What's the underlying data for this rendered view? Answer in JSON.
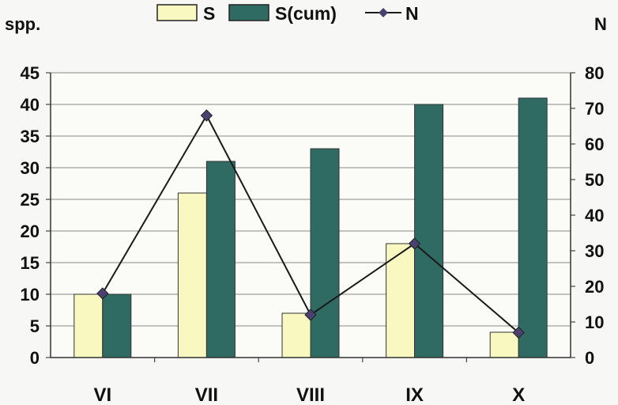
{
  "chart_data": {
    "type": "bar",
    "categories": [
      "VI",
      "VII",
      "VIII",
      "IX",
      "X"
    ],
    "series": [
      {
        "name": "S",
        "type": "bar",
        "axis": "left",
        "color": "#f8f8c0",
        "values": [
          10,
          26,
          7,
          18,
          4
        ]
      },
      {
        "name": "S(cum)",
        "type": "bar",
        "axis": "left",
        "color": "#2f6b63",
        "values": [
          10,
          31,
          33,
          40,
          41
        ]
      },
      {
        "name": "N",
        "type": "line",
        "axis": "right",
        "color": "#1a1a1a",
        "marker_color": "#4b4170",
        "values": [
          18,
          68,
          12,
          32,
          7
        ]
      }
    ],
    "ylabel": "spp.",
    "y2label": "N",
    "ylim": [
      0,
      45
    ],
    "y2lim": [
      0,
      80
    ],
    "yticks": [
      "0",
      "5",
      "10",
      "15",
      "20",
      "25",
      "30",
      "35",
      "40",
      "45"
    ],
    "y2ticks": [
      "0",
      "10",
      "20",
      "30",
      "40",
      "50",
      "60",
      "70",
      "80"
    ],
    "grid": true,
    "legend_position": "top"
  }
}
